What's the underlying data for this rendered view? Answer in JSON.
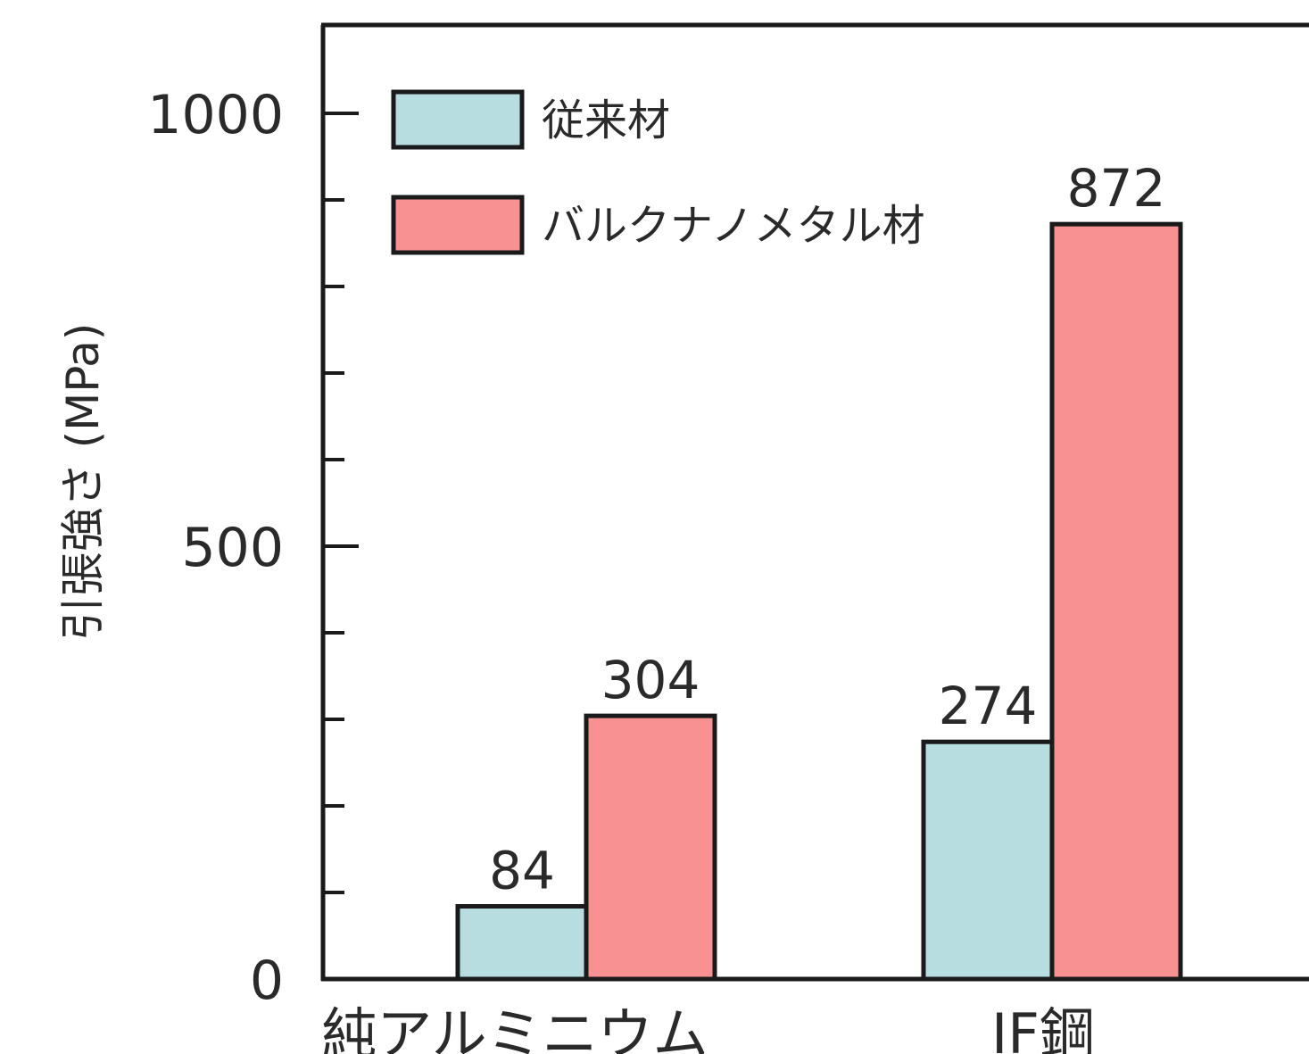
{
  "chart_data": {
    "type": "bar",
    "categories": [
      "純アルミニウム",
      "IF鋼"
    ],
    "series": [
      {
        "name": "従来材",
        "values": [
          84,
          274
        ],
        "color": "#b8dde0"
      },
      {
        "name": "バルクナノメタル材",
        "values": [
          304,
          872
        ],
        "color": "#f79192"
      }
    ],
    "data_labels": [
      [
        "84",
        "304"
      ],
      [
        "274",
        "872"
      ]
    ],
    "ylabel": "引張強さ (MPa)",
    "ylim": [
      0,
      1000
    ],
    "yticks": [
      0,
      500,
      1000
    ],
    "yticks_minor": [
      100,
      200,
      300,
      400,
      600,
      700,
      800,
      900
    ],
    "grid": false,
    "legend": "top-left",
    "bar_edge_color": "#1a1a1a"
  }
}
